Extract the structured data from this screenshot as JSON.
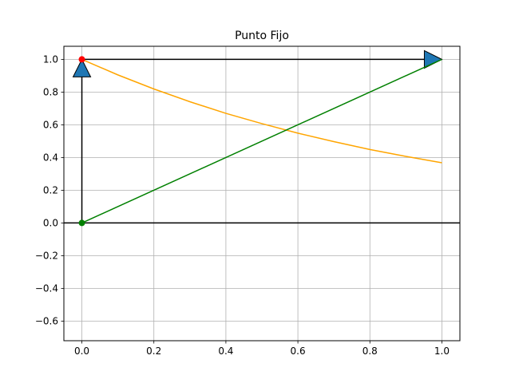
{
  "chart_data": {
    "type": "line",
    "title": "Punto Fijo",
    "xlabel": "",
    "ylabel": "",
    "xlim": [
      -0.05,
      1.05
    ],
    "ylim": [
      -0.72,
      1.08
    ],
    "grid": true,
    "x_ticks": [
      0.0,
      0.2,
      0.4,
      0.6,
      0.8,
      1.0
    ],
    "x_tick_labels": [
      "0.0",
      "0.2",
      "0.4",
      "0.6",
      "0.8",
      "1.0"
    ],
    "y_ticks": [
      -0.6,
      -0.4,
      -0.2,
      0.0,
      0.2,
      0.4,
      0.6,
      0.8,
      1.0
    ],
    "y_tick_labels": [
      "−0.6",
      "−0.4",
      "−0.2",
      "0.0",
      "0.2",
      "0.4",
      "0.6",
      "0.8",
      "1.0"
    ],
    "series": [
      {
        "color": "#ffa500",
        "x": [
          0.0,
          0.1,
          0.2,
          0.3,
          0.4,
          0.5,
          0.6,
          0.7,
          0.8,
          0.9,
          1.0
        ],
        "values": [
          1.0,
          0.905,
          0.819,
          0.741,
          0.67,
          0.607,
          0.549,
          0.497,
          0.449,
          0.407,
          0.368
        ]
      },
      {
        "color": "#008000",
        "x": [
          0.0,
          1.0
        ],
        "values": [
          0.0,
          1.0
        ]
      }
    ],
    "points": [
      {
        "x": 0.0,
        "y": 1.0,
        "color": "#ff0000"
      },
      {
        "x": 0.0,
        "y": 0.0,
        "color": "#008000"
      }
    ],
    "arrows": [
      {
        "x": 0.0,
        "y": 0.0,
        "dx": 0.0,
        "dy": 1.0,
        "color": "#1f77b4"
      },
      {
        "x": 0.0,
        "y": 1.0,
        "dx": 1.0,
        "dy": 0.0,
        "color": "#1f77b4"
      }
    ],
    "axhline_y": 0.0
  }
}
